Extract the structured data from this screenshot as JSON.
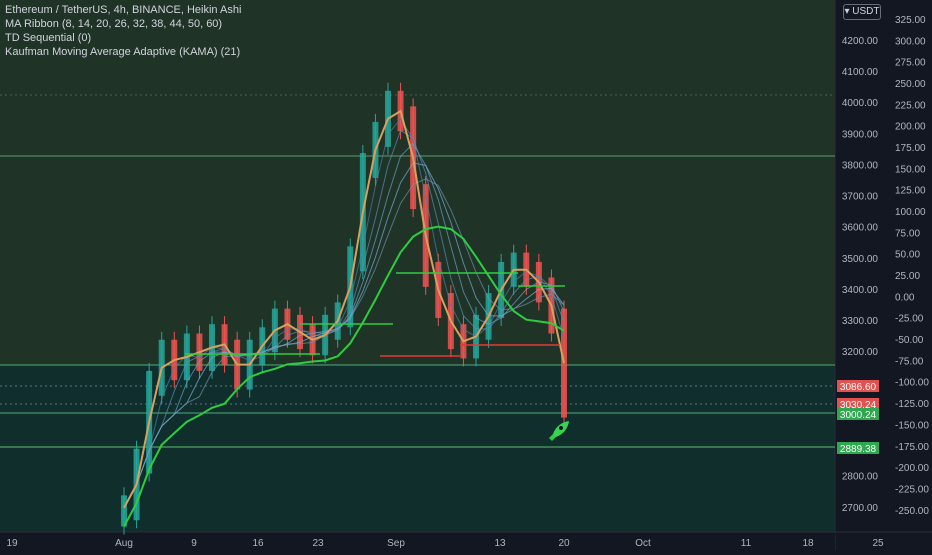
{
  "legend": {
    "line1": "Ethereum / TetherUS, 4h, BINANCE, Heikin Ashi",
    "line2": "MA Ribbon (8, 14, 20, 26, 32, 38, 44, 50, 60)",
    "line3": "TD Sequential (0)",
    "line4": "Kaufman Moving Average Adaptive (KAMA) (21)"
  },
  "currency_label": "USDT",
  "colors": {
    "background": "#131722",
    "upper_zone": "#1f3327",
    "lower_zone": "#0f2e2c",
    "green_line": "#2ecc40",
    "kama_line": "#d8a060",
    "red_line": "#e53935",
    "candle_up": "#26a69a",
    "candle_down": "#ef5350",
    "label_red": "#e0514f",
    "label_green": "#2fa84f"
  },
  "chart_data": {
    "type": "line",
    "title": "Ethereum / TetherUS, 4h, BINANCE, Heikin Ashi",
    "x_ticks": [
      "19",
      "Aug",
      "9",
      "16",
      "23",
      "Sep",
      "13",
      "20",
      "Oct",
      "11",
      "18",
      "25"
    ],
    "price_ticks": [
      "4200.00",
      "4100.00",
      "4000.00",
      "3900.00",
      "3800.00",
      "3700.00",
      "3600.00",
      "3500.00",
      "3400.00",
      "3300.00",
      "3200.00",
      "2800.00",
      "2700.00"
    ],
    "oscillator_ticks": [
      "325.00",
      "300.00",
      "275.00",
      "250.00",
      "225.00",
      "200.00",
      "175.00",
      "150.00",
      "125.00",
      "100.00",
      "75.00",
      "50.00",
      "25.00",
      "0.00",
      "-25.00",
      "-50.00",
      "-75.00",
      "-100.00",
      "-125.00",
      "-150.00",
      "-175.00",
      "-200.00",
      "-225.00",
      "-250.00"
    ],
    "price_labels": [
      {
        "text": "3086.60",
        "color": "red"
      },
      {
        "text": "3030.24",
        "color": "red"
      },
      {
        "text": "3000.24",
        "color": "green"
      },
      {
        "text": "2889.38",
        "color": "green"
      }
    ],
    "levels": [
      3800,
      3160,
      3000,
      2889
    ],
    "approx_close_series": [
      2700,
      2850,
      3100,
      3200,
      3150,
      3220,
      3180,
      3250,
      3200,
      3120,
      3200,
      3240,
      3300,
      3280,
      3250,
      3230,
      3280,
      3320,
      3500,
      3800,
      3900,
      4000,
      3950,
      3700,
      3450,
      3350,
      3250,
      3220,
      3280,
      3350,
      3450,
      3480,
      3450,
      3400,
      3300,
      3030
    ],
    "approx_start": "19",
    "approx_end": "20",
    "ylim": [
      2650,
      4250
    ]
  }
}
